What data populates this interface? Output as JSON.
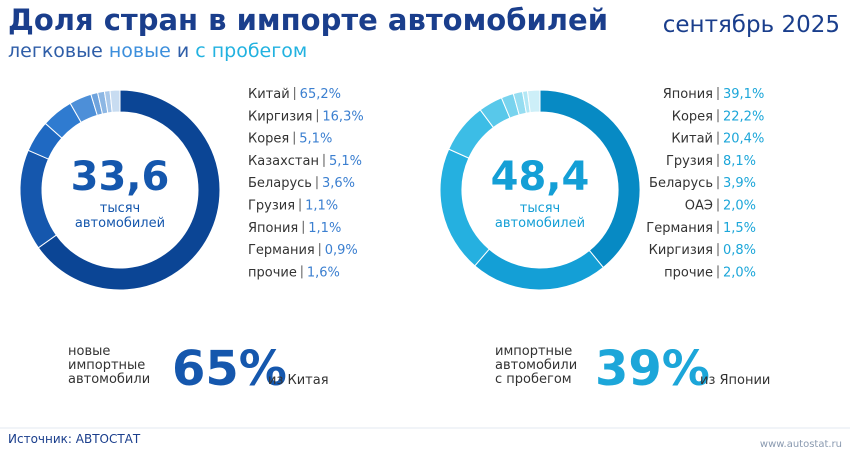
{
  "header": {
    "title": "Доля стран в импорте автомобилей",
    "subtitle": [
      "легковые",
      "новые",
      "и",
      "с пробегом"
    ],
    "date": "сентябрь 2025"
  },
  "chart_data": [
    {
      "type": "pie",
      "donut": true,
      "center_value": "33,6",
      "center_caption": [
        "тысяч",
        "автомобилей"
      ],
      "categories": [
        "Китай",
        "Киргизия",
        "Корея",
        "Казахстан",
        "Беларусь",
        "Грузия",
        "Япония",
        "Германия",
        "прочие"
      ],
      "values": [
        65.2,
        16.3,
        5.1,
        5.1,
        3.6,
        1.1,
        1.1,
        0.9,
        1.6
      ],
      "value_labels": [
        "65,2%",
        "16,3%",
        "5,1%",
        "5,1%",
        "3,6%",
        "1,1%",
        "1,1%",
        "0,9%",
        "1,6%"
      ],
      "colors": [
        "#0b4595",
        "#1557ad",
        "#1f69c2",
        "#2f7bd0",
        "#4d8fd8",
        "#6ea3dd",
        "#8db7e4",
        "#a9c8ea",
        "#c8dcf1"
      ]
    },
    {
      "type": "pie",
      "donut": true,
      "center_value": "48,4",
      "center_caption": [
        "тысяч",
        "автомобилей"
      ],
      "categories": [
        "Япония",
        "Корея",
        "Китай",
        "Грузия",
        "Беларусь",
        "ОАЭ",
        "Германия",
        "Киргизия",
        "прочие"
      ],
      "values": [
        39.1,
        22.2,
        20.4,
        8.1,
        3.9,
        2.0,
        1.5,
        0.8,
        2.0
      ],
      "value_labels": [
        "39,1%",
        "22,2%",
        "20,4%",
        "8,1%",
        "3,9%",
        "2,0%",
        "1,5%",
        "0,8%",
        "2,0%"
      ],
      "colors": [
        "#078ac4",
        "#149fd6",
        "#25b0e0",
        "#3cbde6",
        "#58c8ea",
        "#78d3ee",
        "#96ddf1",
        "#b2e7f5",
        "#cdeff8"
      ]
    }
  ],
  "callouts": [
    {
      "caption": [
        "новые",
        "импортные",
        "автомобили"
      ],
      "big": "65%",
      "tail": "из Китая"
    },
    {
      "caption": [
        "импортные",
        "автомобили",
        "с пробегом"
      ],
      "big": "39%",
      "tail": "из Японии"
    }
  ],
  "footer": {
    "source": "Источник: АВТОСТАТ",
    "site": "www.autostat.ru"
  }
}
